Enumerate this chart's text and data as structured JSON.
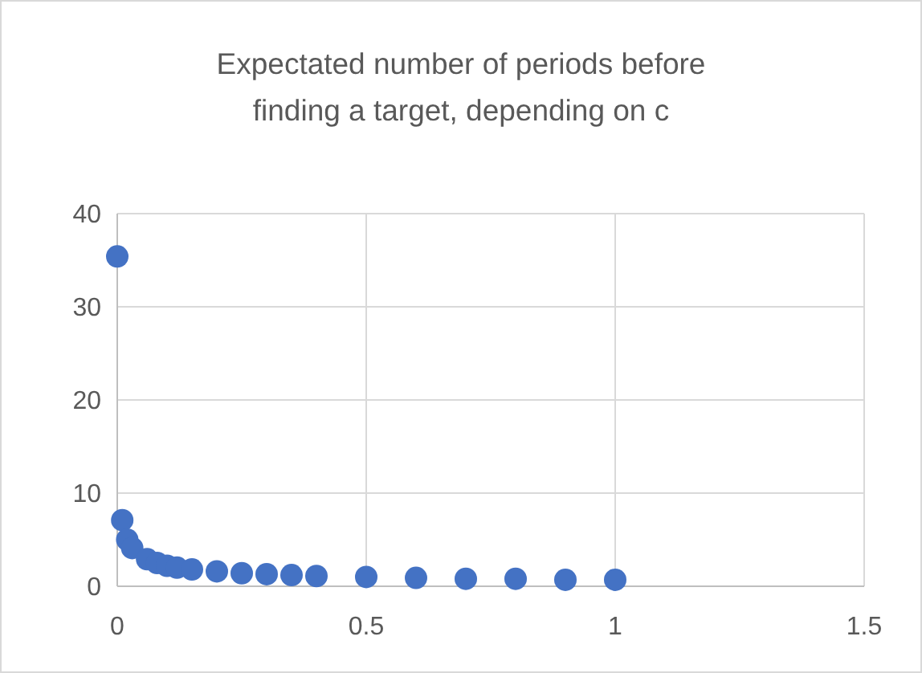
{
  "chart_data": {
    "type": "scatter",
    "title": "Expectated number of periods before finding a target, depending on c",
    "x": [
      0,
      0.01,
      0.02,
      0.03,
      0.06,
      0.08,
      0.1,
      0.12,
      0.15,
      0.2,
      0.25,
      0.3,
      0.35,
      0.4,
      0.5,
      0.6,
      0.7,
      0.8,
      0.9,
      1
    ],
    "series": [
      {
        "color": "#4472c4",
        "values": [
          35.4,
          7.1,
          5,
          4.1,
          2.9,
          2.5,
          2.2,
          2,
          1.8,
          1.6,
          1.4,
          1.3,
          1.2,
          1.1,
          1,
          0.9,
          0.8,
          0.8,
          0.7,
          0.7
        ]
      }
    ],
    "xlim": [
      0,
      1.5
    ],
    "xticks": [
      0,
      0.5,
      1,
      1.5
    ],
    "ylim": [
      0,
      40
    ],
    "yticks": [
      0,
      10,
      20,
      30,
      40
    ],
    "grid": true,
    "marker": "circle"
  }
}
